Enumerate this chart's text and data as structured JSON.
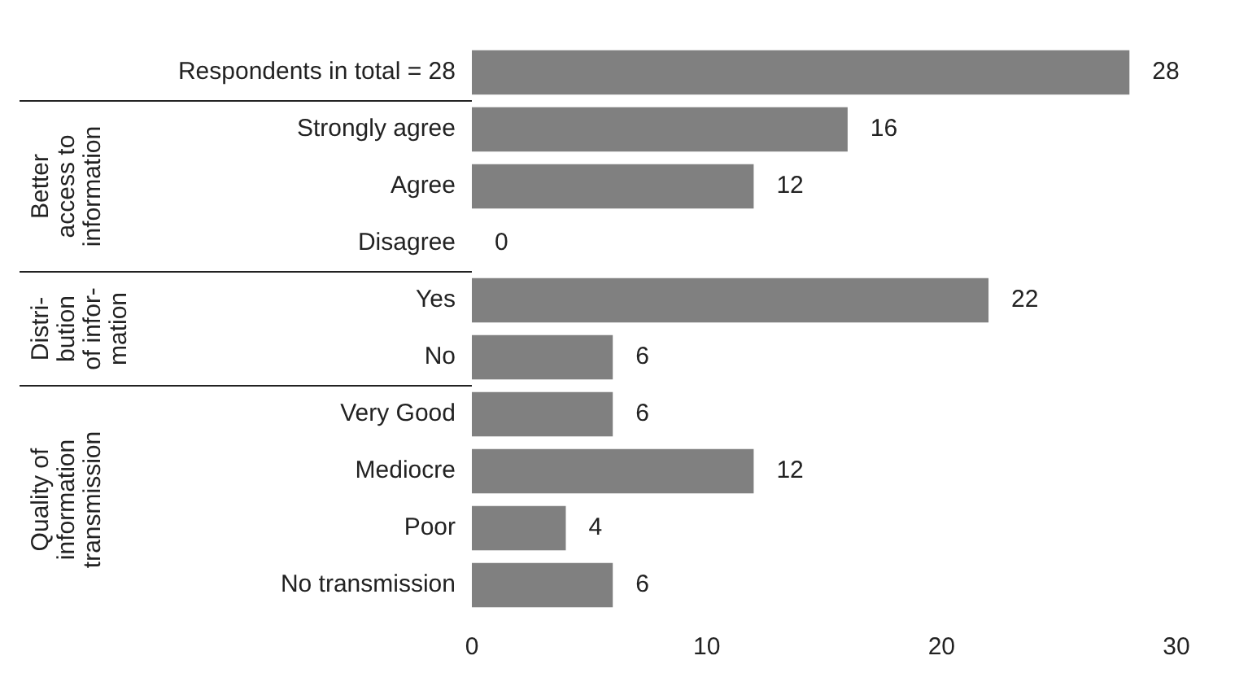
{
  "chart_data": {
    "type": "bar",
    "orientation": "horizontal",
    "categories": [
      "Respondents in total = 28",
      "Strongly agree",
      "Agree",
      "Disagree",
      "Yes",
      "No",
      "Very Good",
      "Mediocre",
      "Poor",
      "No transmission"
    ],
    "values": [
      28,
      16,
      12,
      0,
      22,
      6,
      6,
      12,
      4,
      6
    ],
    "color": "#808080",
    "xlim": [
      0,
      30
    ],
    "xticks": [
      0,
      10,
      20,
      30
    ],
    "grid": false,
    "legend": false,
    "data_labels": true,
    "annotations": [
      "Better\naccess to\ninformation",
      "Distri-\nbution\nof infor-\nmation",
      "Quality of\ninformation\ntransmission"
    ]
  }
}
